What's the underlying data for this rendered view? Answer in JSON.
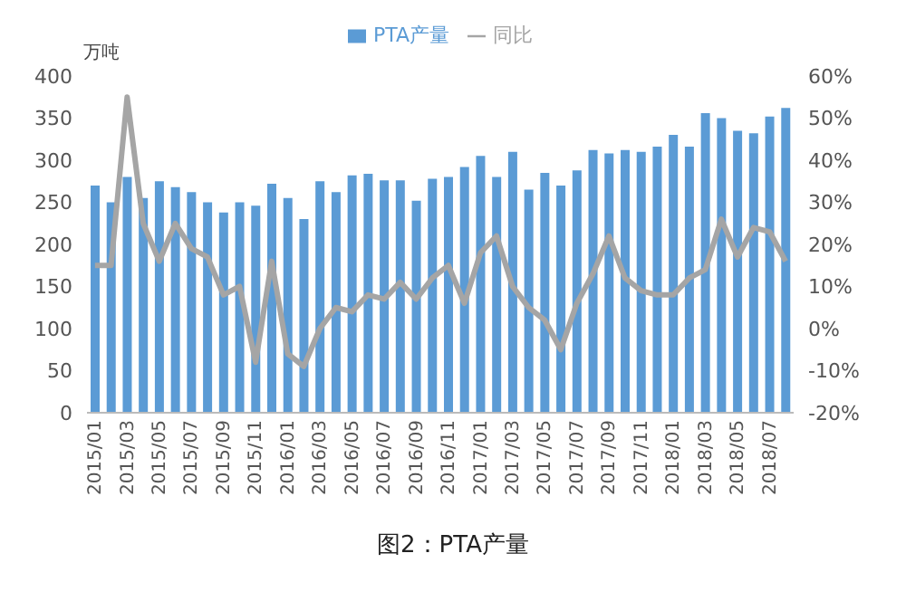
{
  "chart_data": {
    "type": "bar",
    "title": "图2：PTA产量",
    "ylabel": "万吨",
    "categories": [
      "2015/01",
      null,
      "2015/03",
      null,
      "2015/05",
      null,
      "2015/07",
      null,
      "2015/09",
      null,
      "2015/11",
      null,
      "2016/01",
      null,
      "2016/03",
      null,
      "2016/05",
      null,
      "2016/07",
      null,
      "2016/09",
      null,
      "2016/11",
      null,
      "2017/01",
      null,
      "2017/03",
      null,
      "2017/05",
      null,
      "2017/07",
      null,
      "2017/09",
      null,
      "2017/11",
      null,
      "2018/01",
      null,
      "2018/03",
      null,
      "2018/05",
      null,
      "2018/07",
      null
    ],
    "series": [
      {
        "name": "PTA产量",
        "color": "#5b9bd5",
        "values": [
          270,
          250,
          280,
          255,
          275,
          268,
          262,
          250,
          238,
          250,
          246,
          272,
          255,
          230,
          275,
          262,
          282,
          284,
          276,
          276,
          252,
          278,
          280,
          292,
          305,
          280,
          310,
          265,
          285,
          270,
          288,
          312,
          308,
          312,
          310,
          316,
          330,
          316,
          356,
          350,
          335,
          332,
          352,
          362
        ]
      },
      {
        "name": "同比",
        "type": "line",
        "axis": "y2",
        "color": "#a5a5a5",
        "values": [
          15,
          15,
          55,
          25,
          16,
          25,
          19,
          17,
          8,
          10,
          -8,
          16,
          -6,
          -9,
          0,
          5,
          4,
          8,
          7,
          11,
          7,
          12,
          15,
          6,
          18,
          22,
          10,
          5,
          2,
          -5,
          6,
          13,
          22,
          12,
          9,
          8,
          8,
          12,
          14,
          26,
          17,
          24,
          23,
          16
        ]
      }
    ],
    "ylim": [
      0,
      400
    ],
    "yticks": [
      0,
      50,
      100,
      150,
      200,
      250,
      300,
      350,
      400
    ],
    "y2lim": [
      -20,
      60
    ],
    "y2ticks": [
      {
        "value": -20,
        "label": "-20%"
      },
      {
        "value": -10,
        "label": "-10%"
      },
      {
        "value": 0,
        "label": "0%"
      },
      {
        "value": 10,
        "label": "10%"
      },
      {
        "value": 20,
        "label": "20%"
      },
      {
        "value": 30,
        "label": "30%"
      },
      {
        "value": 40,
        "label": "40%"
      },
      {
        "value": 50,
        "label": "50%"
      },
      {
        "value": 60,
        "label": "60%"
      }
    ],
    "grid": false,
    "legend": "top",
    "marker": "none",
    "line_style": "solid"
  }
}
